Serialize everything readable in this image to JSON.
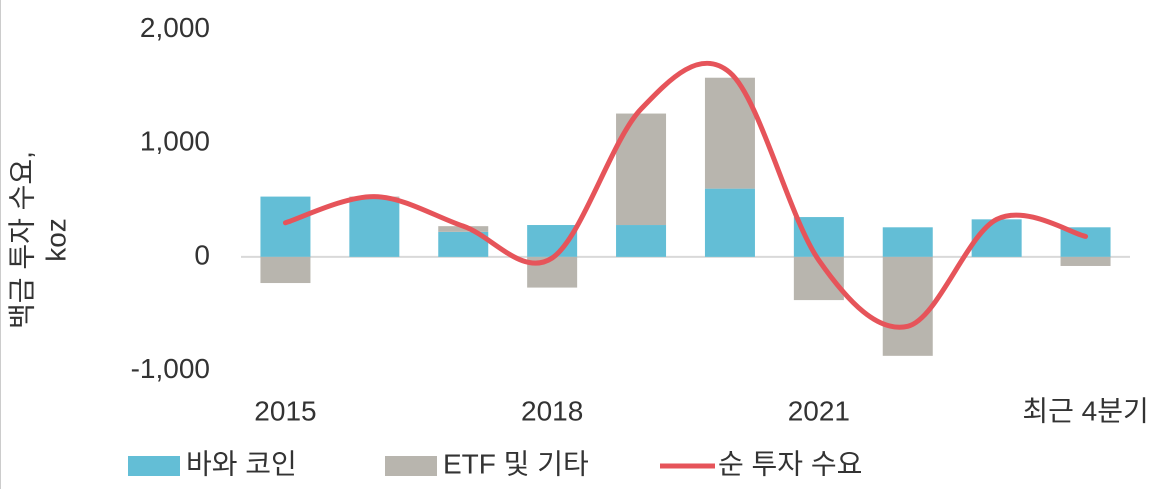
{
  "chart_data": {
    "type": "bar",
    "stacked": true,
    "ylabel": [
      "백금 투자 수요,",
      "koz"
    ],
    "categories": [
      "2015",
      null,
      null,
      "2018",
      null,
      null,
      "2021",
      null,
      null,
      "최근 4분기"
    ],
    "series": [
      {
        "name": "바와 코인",
        "type": "bar",
        "color": "#63bed6",
        "values": [
          530,
          520,
          220,
          280,
          280,
          600,
          350,
          260,
          330,
          260
        ]
      },
      {
        "name": "ETF 및 기타",
        "type": "bar",
        "color": "#b8b5ae",
        "values": [
          -230,
          10,
          50,
          -270,
          980,
          975,
          -380,
          -870,
          0,
          -80
        ]
      },
      {
        "name": "순 투자 수요",
        "type": "line",
        "color": "#e6545a",
        "values": [
          300,
          530,
          270,
          -10,
          1300,
          1620,
          -30,
          -610,
          330,
          180
        ]
      }
    ],
    "ylim": [
      -1100,
      2100
    ],
    "yticks": [
      {
        "value": -1000,
        "label": "-1,000"
      },
      0,
      {
        "value": 1000,
        "label": "1,000"
      },
      {
        "value": 2000,
        "label": "2,000"
      }
    ],
    "legend": "bottom"
  }
}
